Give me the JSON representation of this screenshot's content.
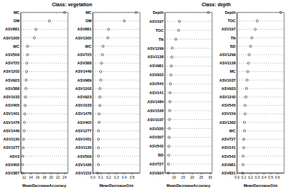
{
  "chart_data": [
    {
      "type": "dot",
      "title": "Class: vegetation",
      "xlabel": "MeanDecreaseAccuracy",
      "categories": [
        "MC",
        "OM",
        "ASV881",
        "ASV1305",
        "WC",
        "ASV509",
        "ASV725",
        "ASV1202",
        "ASV923",
        "ASV388",
        "ASV1033",
        "ASV405",
        "ASV1401",
        "ASV1476",
        "ASV1449",
        "ASV1130",
        "ASV1277",
        "ASV3",
        "ASV400",
        "ASV387"
      ],
      "values": [
        24,
        19.5,
        15.5,
        15,
        13,
        13,
        12.8,
        12.7,
        12.6,
        12.5,
        12.4,
        12.3,
        12.2,
        12.1,
        12,
        11.8,
        11.7,
        11.6,
        11.5,
        11.4
      ],
      "xlim": [
        11,
        25
      ],
      "xticks": [
        12,
        14,
        16,
        18,
        20,
        22,
        24
      ],
      "color": "#333333",
      "marker": "circle",
      "line_style": "none",
      "grid": true
    },
    {
      "type": "dot",
      "xlabel": "MeanDecreaseGini",
      "categories": [
        "MC",
        "OM",
        "ASV881",
        "ASV1305",
        "WC",
        "ASV725",
        "ASV388",
        "ASV1449",
        "ASV989",
        "ASV1202",
        "ASV923",
        "ASV1033",
        "ASV1476",
        "ASV405",
        "ASV1277",
        "ASV1451",
        "ASV1130",
        "ASV509",
        "ASV1426",
        "ASV1152"
      ],
      "values": [
        0.55,
        0.4,
        0.2,
        0.19,
        0.13,
        0.12,
        0.11,
        0.1,
        0.1,
        0.09,
        0.09,
        0.09,
        0.08,
        0.08,
        0.07,
        0.07,
        0.07,
        0.07,
        0.07,
        0.06
      ],
      "xlim": [
        0,
        0.6
      ],
      "xticks": [
        {
          "value": 0,
          "label": "0.0"
        },
        0.1,
        0.2,
        0.3,
        0.4,
        0.5
      ],
      "color": "#333333",
      "marker": "circle",
      "line_style": "none",
      "grid": true
    },
    {
      "type": "dot",
      "title": "Class: depth",
      "xlabel": "MeanDecreaseAccuracy",
      "categories": [
        "Depth",
        "ASV197",
        "TOC",
        "TN",
        "ASV1299",
        "ASV1138",
        "ASV981",
        "ASV932",
        "ASV545",
        "ASV141",
        "ASV1484",
        "ASV1526",
        "ASV1037",
        "ASV335",
        "ASV397",
        "ASV542",
        "BD",
        "ASV727",
        "ASV934"
      ],
      "values": [
        29,
        13,
        12.5,
        11,
        9,
        8.8,
        8.5,
        8.3,
        8,
        7.8,
        7.7,
        7.6,
        7.5,
        7.4,
        7.3,
        7.2,
        7.1,
        7,
        6.9
      ],
      "xlim": [
        5,
        31
      ],
      "xticks": [
        10,
        15,
        20,
        25,
        30
      ],
      "color": "#333333",
      "marker": "circle",
      "line_style": "none",
      "grid": true
    },
    {
      "type": "dot",
      "xlabel": "MeanDecreaseGini",
      "categories": [
        "Depth",
        "TOC",
        "ASV197",
        "TN",
        "BD",
        "ASV1299",
        "ASV1138",
        "MC",
        "ASV1037",
        "ASV933",
        "ASV1242",
        "ASV545",
        "ASV159",
        "ASV1362",
        "WC",
        "ASV727",
        "ASV141",
        "ASV542",
        "ASV981",
        "ASV831"
      ],
      "values": [
        0.65,
        0.3,
        0.27,
        0.22,
        0.2,
        0.18,
        0.17,
        0.16,
        0.15,
        0.14,
        0.13,
        0.12,
        0.12,
        0.11,
        0.11,
        0.1,
        0.1,
        0.09,
        0.09,
        0.08
      ],
      "xlim": [
        0,
        0.7
      ],
      "xticks": [
        {
          "value": 0,
          "label": "0.0"
        },
        0.1,
        0.2,
        0.3,
        0.4,
        0.5,
        0.6
      ],
      "color": "#333333",
      "marker": "circle",
      "line_style": "none",
      "grid": true
    }
  ]
}
